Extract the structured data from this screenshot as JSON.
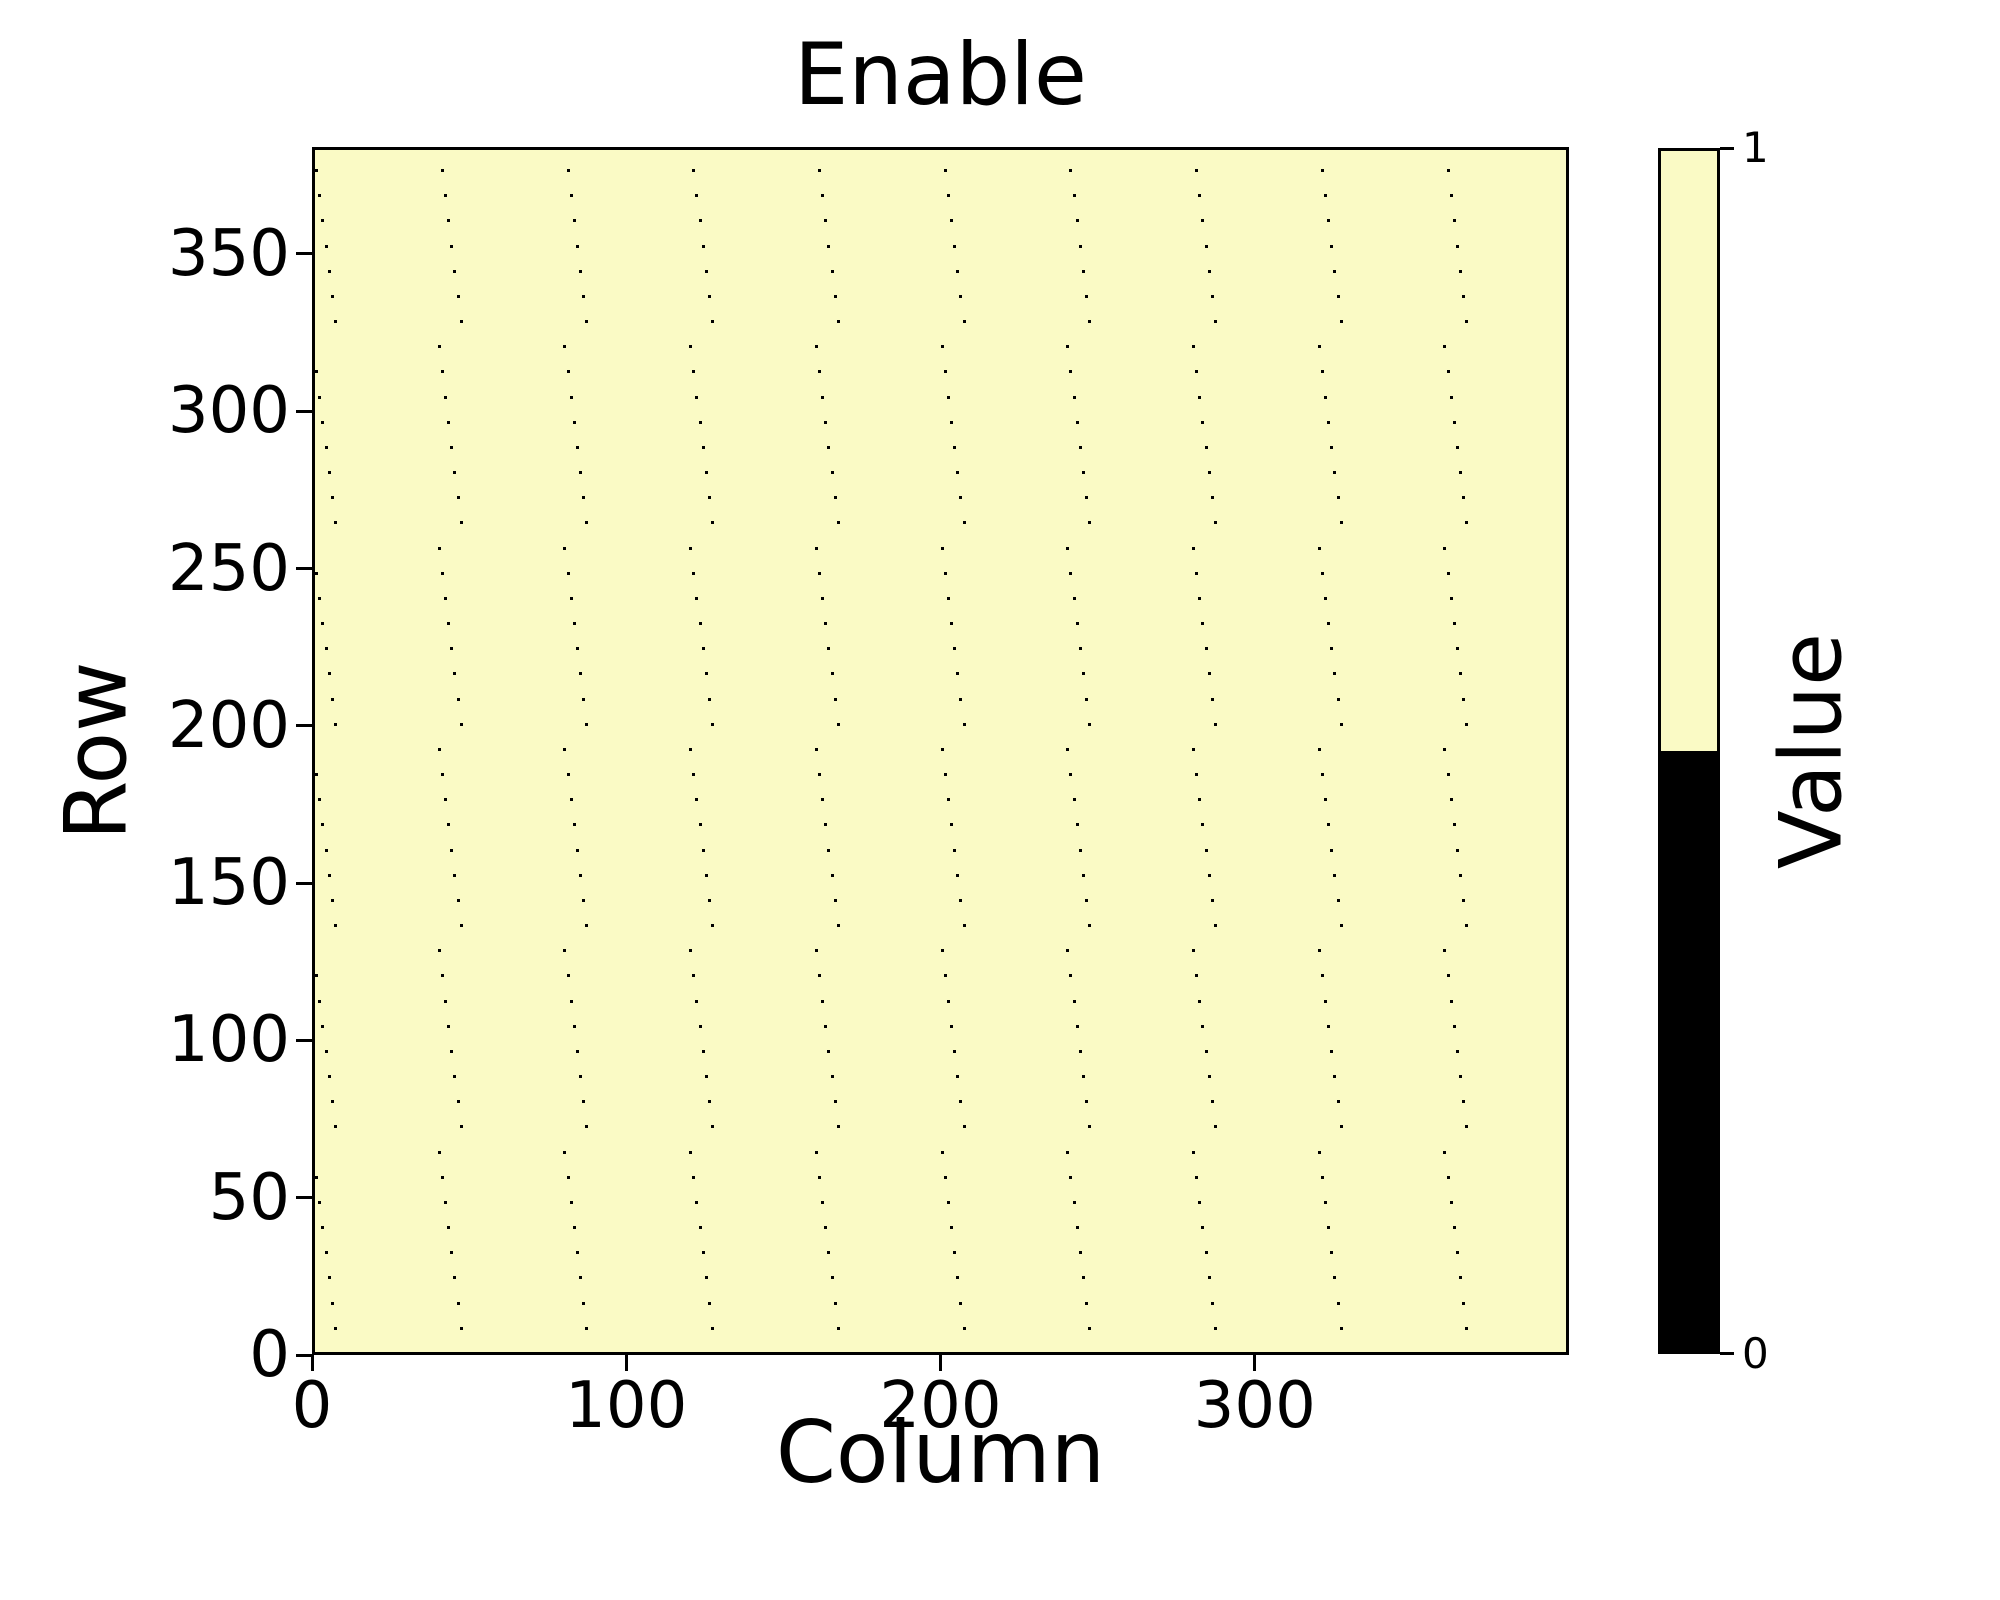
{
  "title": "Enable",
  "colorbar": {
    "label": "Value",
    "top_tick_label": "1",
    "bottom_tick_label": "0"
  },
  "chart_data": {
    "type": "heatmap",
    "title": "Enable",
    "xlabel": "Column",
    "ylabel": "Row",
    "colorbar_label": "Value",
    "n_rows": 384,
    "n_cols": 400,
    "xlim": [
      0,
      400
    ],
    "ylim": [
      0,
      384
    ],
    "xticks": [
      0,
      100,
      200,
      300
    ],
    "yticks": [
      0,
      50,
      100,
      150,
      200,
      250,
      300,
      350
    ],
    "colorbar_ticks": [
      {
        "value": 1,
        "label": "1"
      },
      {
        "value": 0,
        "label": "0"
      }
    ],
    "value_colors": {
      "1": "#FAFAC5",
      "0": "#000000"
    },
    "background_value": 1,
    "disabled_value": 0,
    "disabled_pixels": {
      "count": 480,
      "pattern": "disabled pixel at row r = 8*i (i = 0..47) and column c = 40*j + offset(i) (j = 0..9); offset cycles [0,7,6,5,4,3,2,1] as i increases from the bottom row upward",
      "row_step": 8,
      "num_dot_rows": 48,
      "col_block": 40,
      "num_col_blocks": 10,
      "offset_cycle": [
        0,
        7,
        6,
        5,
        4,
        3,
        2,
        1
      ]
    },
    "grid": false,
    "legend_position": "colorbar-right"
  }
}
